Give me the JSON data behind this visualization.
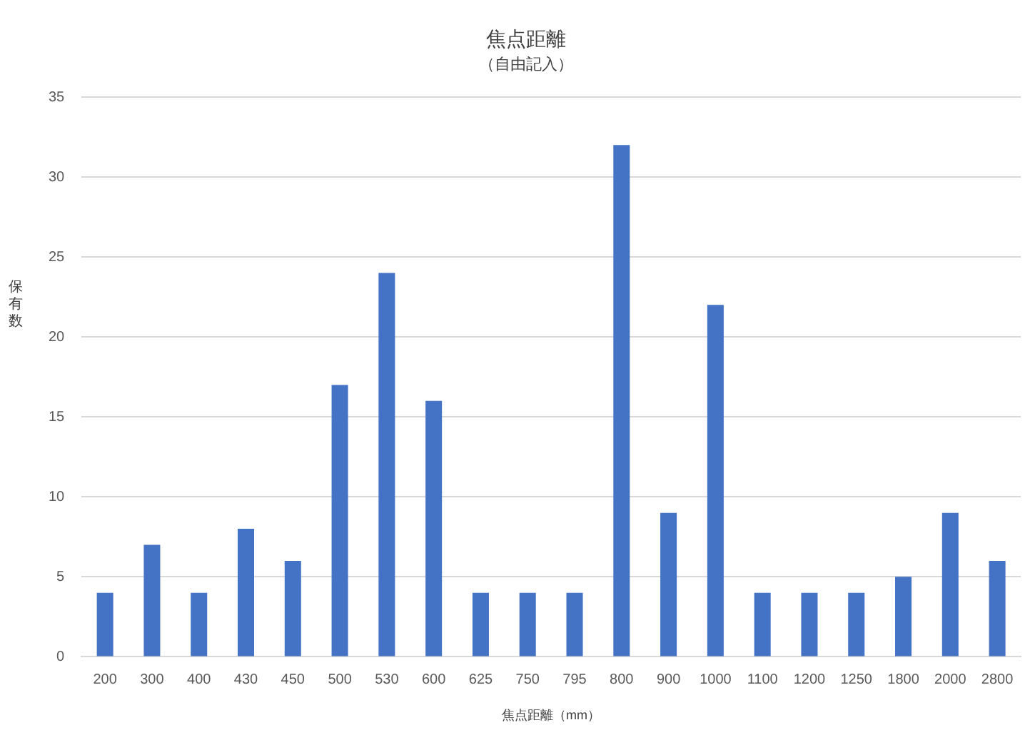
{
  "chart_data": {
    "type": "bar",
    "title": "焦点距離",
    "subtitle": "（自由記入）",
    "xlabel": "焦点距離（mm）",
    "ylabel": "保有数",
    "categories": [
      "200",
      "300",
      "400",
      "430",
      "450",
      "500",
      "530",
      "600",
      "625",
      "750",
      "795",
      "800",
      "900",
      "1000",
      "1100",
      "1200",
      "1250",
      "1800",
      "2000",
      "2800"
    ],
    "values": [
      4,
      7,
      4,
      8,
      6,
      17,
      24,
      16,
      4,
      4,
      4,
      32,
      9,
      22,
      4,
      4,
      4,
      5,
      9,
      6
    ],
    "color": "#4472c4",
    "ylim": [
      0,
      35
    ],
    "yticks": [
      0,
      5,
      10,
      15,
      20,
      25,
      30,
      35
    ],
    "grid": "y"
  }
}
